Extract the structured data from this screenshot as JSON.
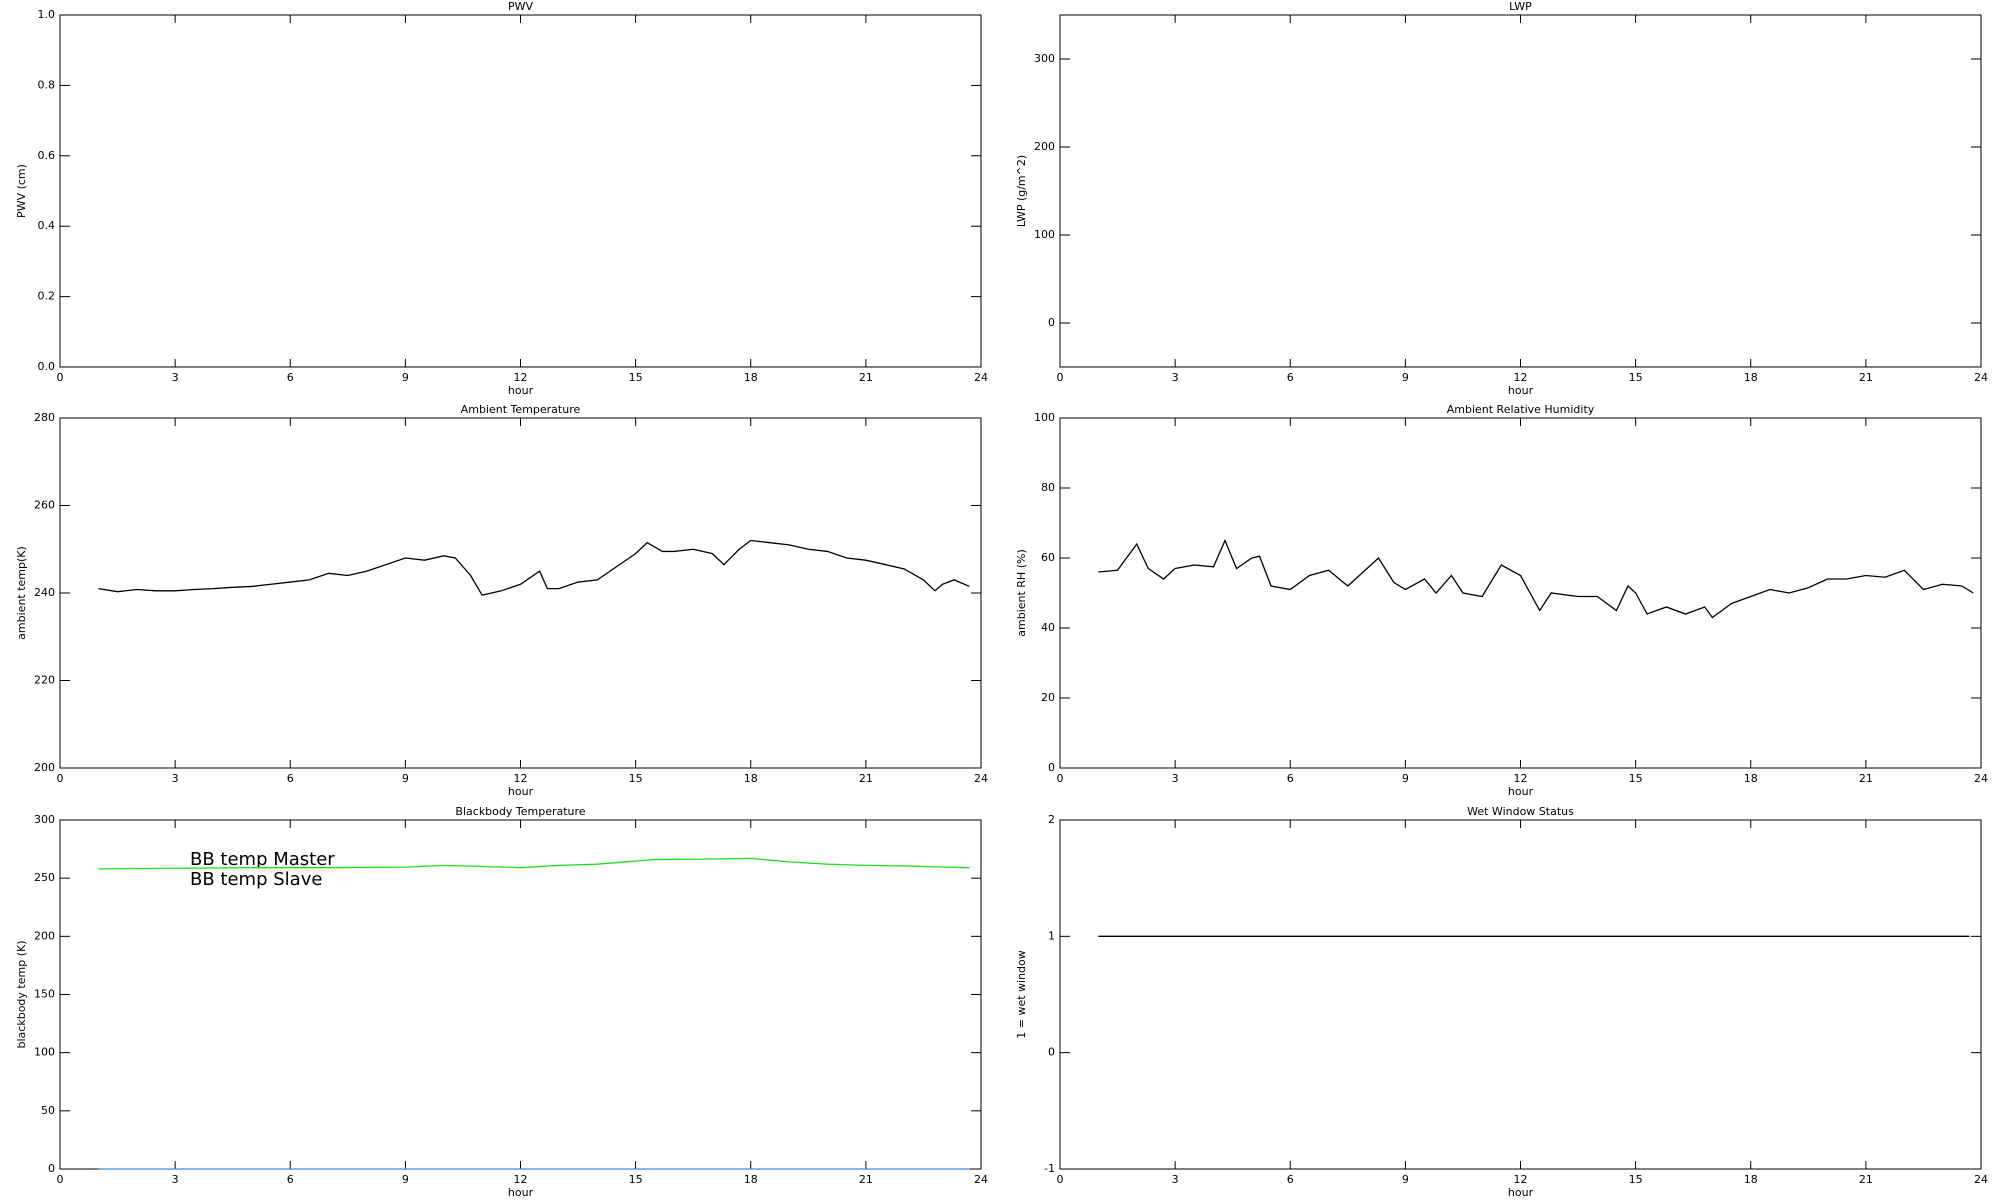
{
  "chart_data": [
    {
      "type": "line",
      "title": "PWV",
      "xlabel": "hour",
      "ylabel": "PWV (cm)",
      "xlim": [
        0,
        24
      ],
      "xticks": [
        0,
        3,
        6,
        9,
        12,
        15,
        18,
        21,
        24
      ],
      "ylim": [
        0,
        1
      ],
      "yticks": [
        {
          "value": 0,
          "label": "0.0"
        },
        0.2,
        0.4,
        0.6,
        0.8,
        {
          "value": 1,
          "label": "1.0"
        }
      ]
    },
    {
      "type": "line",
      "title": "LWP",
      "xlabel": "hour",
      "ylabel": "LWP (g/m^2)",
      "xlim": [
        0,
        24
      ],
      "xticks": [
        0,
        3,
        6,
        9,
        12,
        15,
        18,
        21,
        24
      ],
      "ylim": [
        -50,
        350
      ],
      "yticks": [
        0,
        100,
        200,
        300
      ]
    },
    {
      "type": "line",
      "title": "Ambient Temperature",
      "xlabel": "hour",
      "ylabel": "ambient temp(K)",
      "xlim": [
        0,
        24
      ],
      "xticks": [
        0,
        3,
        6,
        9,
        12,
        15,
        18,
        21,
        24
      ],
      "ylim": [
        200,
        280
      ],
      "yticks": [
        200,
        220,
        240,
        260,
        280
      ],
      "color": "#000000",
      "x": [
        1,
        1.5,
        2,
        2.5,
        3,
        3.5,
        4,
        4.5,
        5,
        5.5,
        6,
        6.5,
        7,
        7.5,
        8,
        8.5,
        9,
        9.5,
        10,
        10.3,
        10.7,
        11,
        11.5,
        12,
        12.5,
        12.7,
        13,
        13.5,
        14,
        14.5,
        15,
        15.3,
        15.7,
        16,
        16.5,
        17,
        17.3,
        17.7,
        18,
        18.5,
        19,
        19.5,
        20,
        20.5,
        21,
        21.5,
        22,
        22.5,
        22.8,
        23,
        23.3,
        23.7
      ],
      "values": [
        241,
        240.3,
        240.8,
        240.5,
        240.5,
        240.8,
        241,
        241.3,
        241.5,
        242,
        242.5,
        243,
        244.5,
        244,
        245,
        246.5,
        248,
        247.5,
        248.5,
        248,
        244,
        239.5,
        240.5,
        242,
        245,
        241,
        241,
        242.5,
        243,
        246,
        249,
        251.5,
        249.5,
        249.5,
        250,
        249,
        246.5,
        250,
        252,
        251.5,
        251,
        250,
        249.5,
        248,
        247.5,
        246.5,
        245.5,
        243,
        240.5,
        242,
        243,
        241.5
      ]
    },
    {
      "type": "line",
      "title": "Ambient Relative Humidity",
      "xlabel": "hour",
      "ylabel": "ambient RH (%)",
      "xlim": [
        0,
        24
      ],
      "xticks": [
        0,
        3,
        6,
        9,
        12,
        15,
        18,
        21,
        24
      ],
      "ylim": [
        0,
        100
      ],
      "yticks": [
        0,
        20,
        40,
        60,
        80,
        100
      ],
      "color": "#000000",
      "x": [
        1,
        1.5,
        2,
        2.3,
        2.7,
        3,
        3.5,
        4,
        4.3,
        4.6,
        5,
        5.2,
        5.5,
        6,
        6.5,
        7,
        7.5,
        8,
        8.3,
        8.7,
        9,
        9.5,
        9.8,
        10.2,
        10.5,
        11,
        11.5,
        12,
        12.3,
        12.5,
        12.8,
        13.5,
        14,
        14.5,
        14.8,
        15,
        15.3,
        15.8,
        16.3,
        16.8,
        17,
        17.5,
        18,
        18.5,
        19,
        19.5,
        20,
        20.5,
        21,
        21.5,
        22,
        22.5,
        23,
        23.5,
        23.8
      ],
      "values": [
        56,
        56.5,
        64,
        57,
        54,
        57,
        58,
        57.5,
        65,
        57,
        60,
        60.5,
        52,
        51,
        55,
        56.5,
        52,
        57,
        60,
        53,
        51,
        54,
        50,
        55,
        50,
        49,
        58,
        55,
        49,
        45,
        50,
        49,
        49,
        45,
        52,
        50,
        44,
        46,
        44,
        46,
        43,
        47,
        49,
        51,
        50,
        51.5,
        54,
        54,
        55,
        54.5,
        56.5,
        51,
        52.5,
        52,
        50
      ]
    },
    {
      "type": "line",
      "title": "Blackbody Temperature",
      "xlabel": "hour",
      "ylabel": "blackbody temp (K)",
      "xlim": [
        0,
        24
      ],
      "xticks": [
        0,
        3,
        6,
        9,
        12,
        15,
        18,
        21,
        24
      ],
      "ylim": [
        0,
        300
      ],
      "yticks": [
        0,
        50,
        100,
        150,
        200,
        250,
        300
      ],
      "x": [
        1,
        3,
        5,
        7,
        9,
        10,
        11,
        12,
        13,
        14,
        15.5,
        17,
        18,
        19,
        20,
        21,
        22,
        23,
        23.7
      ],
      "series": [
        {
          "name": "BB temp Master",
          "color": "#3c8ce6",
          "values": [
            0,
            0,
            0,
            0,
            0,
            0,
            0,
            0,
            0,
            0,
            0,
            0,
            0,
            0,
            0,
            0,
            0,
            0,
            0
          ]
        },
        {
          "name": "BB temp Slave",
          "color": "#22dd22",
          "values": [
            258,
            258.5,
            259,
            259,
            259.5,
            261,
            260,
            259,
            261,
            262,
            266,
            266.5,
            267,
            264,
            262,
            261,
            260.5,
            259.5,
            259
          ]
        }
      ]
    },
    {
      "type": "line",
      "title": "Wet Window Status",
      "xlabel": "hour",
      "ylabel": "1 = wet window",
      "xlim": [
        0,
        24
      ],
      "xticks": [
        0,
        3,
        6,
        9,
        12,
        15,
        18,
        21,
        24
      ],
      "ylim": [
        -1,
        2
      ],
      "yticks": [
        -1,
        0,
        1,
        2
      ],
      "color": "#000000",
      "x": [
        1,
        23.7
      ],
      "values": [
        1,
        1
      ]
    }
  ]
}
